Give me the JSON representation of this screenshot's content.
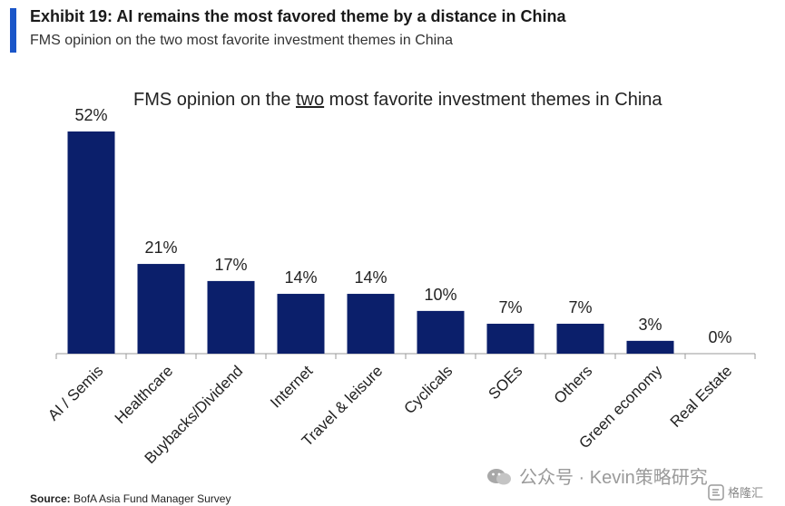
{
  "header": {
    "title": "Exhibit 19: AI remains the most favored theme by a distance in China",
    "subtitle": "FMS opinion on the two most favorite investment themes in China"
  },
  "chart_data": {
    "type": "bar",
    "title_parts": [
      "FMS opinion on the ",
      "two",
      " most favorite investment themes in China"
    ],
    "categories": [
      "AI / Semis",
      "Healthcare",
      "Buybacks/Dividend",
      "Internet",
      "Travel & leisure",
      "Cyclicals",
      "SOEs",
      "Others",
      "Green economy",
      "Real Estate"
    ],
    "values": [
      52,
      21,
      17,
      14,
      14,
      10,
      7,
      7,
      3,
      0
    ],
    "data_labels": [
      "52%",
      "21%",
      "17%",
      "14%",
      "14%",
      "10%",
      "7%",
      "7%",
      "3%",
      "0%"
    ],
    "ylim": [
      0,
      52
    ],
    "grid": false,
    "bar_color": "#0b1f6b"
  },
  "source": {
    "label": "Source:",
    "text": " BofA Asia Fund Manager Survey"
  },
  "watermark": {
    "text": "公众号 · Kevin策略研究",
    "icon": "wechat-icon"
  },
  "corner_logo": {
    "text": "格隆汇"
  },
  "colors": {
    "accent": "#1a56c9",
    "bar": "#0b1f6b"
  }
}
